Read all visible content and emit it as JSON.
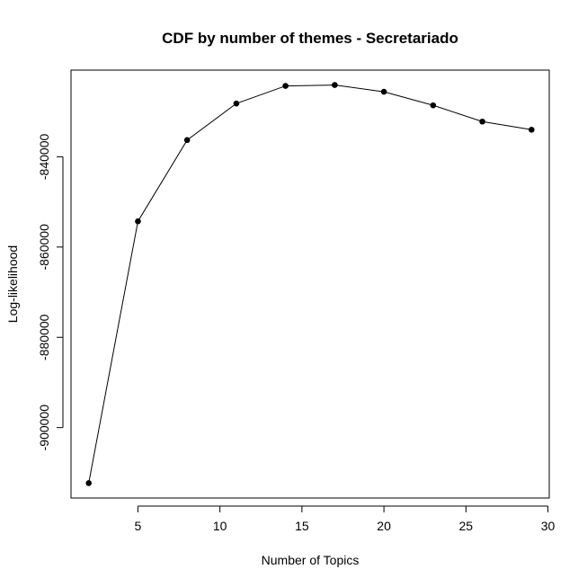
{
  "chart_data": {
    "type": "line",
    "title": "CDF by number of themes - Secretariado",
    "xlabel": "Number of Topics",
    "ylabel": "Log-likelihood",
    "x": [
      2,
      5,
      8,
      11,
      14,
      17,
      20,
      23,
      26,
      29
    ],
    "y": [
      -912300,
      -854300,
      -836300,
      -828200,
      -824300,
      -824100,
      -825600,
      -828600,
      -832200,
      -834000
    ],
    "xlim": [
      0.92,
      30.08
    ],
    "ylim": [
      -915600,
      -820800
    ],
    "xticks": [
      5,
      10,
      15,
      20,
      25,
      30
    ],
    "xtick_labels": [
      "5",
      "10",
      "15",
      "20",
      "25",
      "30"
    ],
    "yticks": [
      -900000,
      -880000,
      -860000,
      -840000
    ],
    "ytick_labels": [
      "-900000",
      "-880000",
      "-860000",
      "-840000"
    ],
    "grid": false,
    "markers": "filled-circle",
    "line_color": "#000000"
  }
}
